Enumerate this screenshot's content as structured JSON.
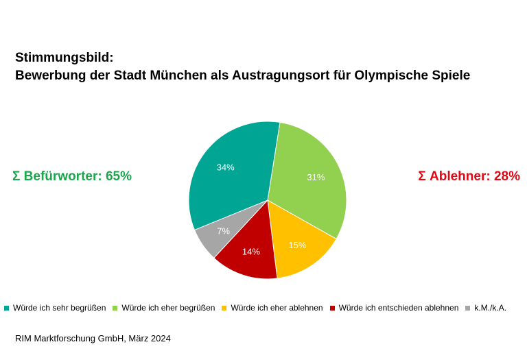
{
  "header": {
    "title_line1": "Stimmungsbild:",
    "title_line2": "Bewerbung der Stadt München als Austragungsort für Olympische Spiele"
  },
  "summaries": {
    "left": "Σ Befürworter: 65%",
    "left_color": "#1aa64b",
    "right": "Σ Ablehner: 28%",
    "right_color": "#e30613"
  },
  "chart_data": {
    "type": "pie",
    "title": "Stimmungsbild: Bewerbung der Stadt München als Austragungsort für Olympische Spiele",
    "categories": [
      "Würde ich sehr begrüßen",
      "Würde ich eher begrüßen",
      "Würde ich eher ablehnen",
      "Würde ich entschieden ablehnen",
      "k.M./k.A."
    ],
    "values": [
      34,
      31,
      15,
      14,
      7
    ],
    "labels": [
      "34%",
      "31%",
      "15%",
      "14%",
      "7%"
    ],
    "colors": [
      "#00a594",
      "#92d050",
      "#ffc000",
      "#c00000",
      "#a6a6a6"
    ],
    "legend_position": "bottom"
  },
  "footer": {
    "source": "RIM Marktforschung GmbH, März 2024"
  }
}
